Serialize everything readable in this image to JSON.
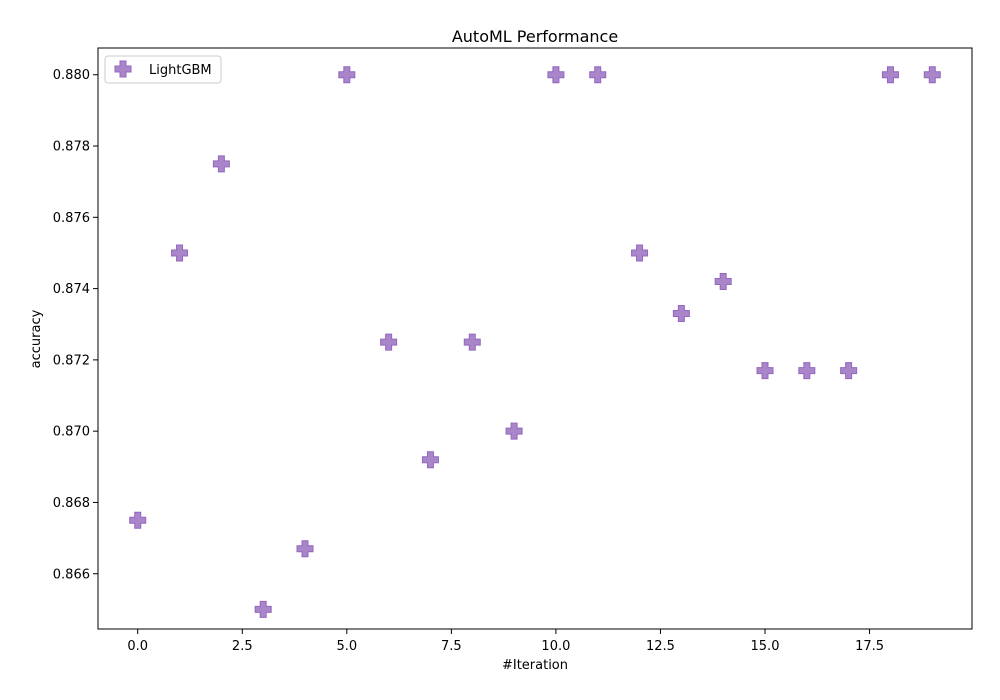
{
  "chart_data": {
    "type": "scatter",
    "title": "AutoML Performance",
    "xlabel": "#Iteration",
    "ylabel": "accuracy",
    "xlim": [
      -0.95,
      19.95
    ],
    "ylim": [
      0.86445,
      0.88075
    ],
    "xticks": [
      0.0,
      2.5,
      5.0,
      7.5,
      10.0,
      12.5,
      15.0,
      17.5
    ],
    "xtick_labels": [
      "0.0",
      "2.5",
      "5.0",
      "7.5",
      "10.0",
      "12.5",
      "15.0",
      "17.5"
    ],
    "yticks": [
      0.866,
      0.868,
      0.87,
      0.872,
      0.874,
      0.876,
      0.878,
      0.88
    ],
    "ytick_labels": [
      "0.866",
      "0.868",
      "0.870",
      "0.872",
      "0.874",
      "0.876",
      "0.878",
      "0.880"
    ],
    "grid": false,
    "legend_position": "top-left",
    "series": [
      {
        "name": "LightGBM",
        "color": "#9467bd",
        "marker": "plus-filled",
        "x": [
          0,
          1,
          2,
          3,
          4,
          5,
          6,
          7,
          8,
          9,
          10,
          11,
          12,
          13,
          14,
          15,
          16,
          17,
          18,
          19
        ],
        "y": [
          0.8675,
          0.875,
          0.8775,
          0.865,
          0.8667,
          0.88,
          0.8725,
          0.8692,
          0.8725,
          0.87,
          0.88,
          0.88,
          0.875,
          0.8733,
          0.8742,
          0.8717,
          0.8717,
          0.8717,
          0.88,
          0.88
        ]
      }
    ]
  }
}
